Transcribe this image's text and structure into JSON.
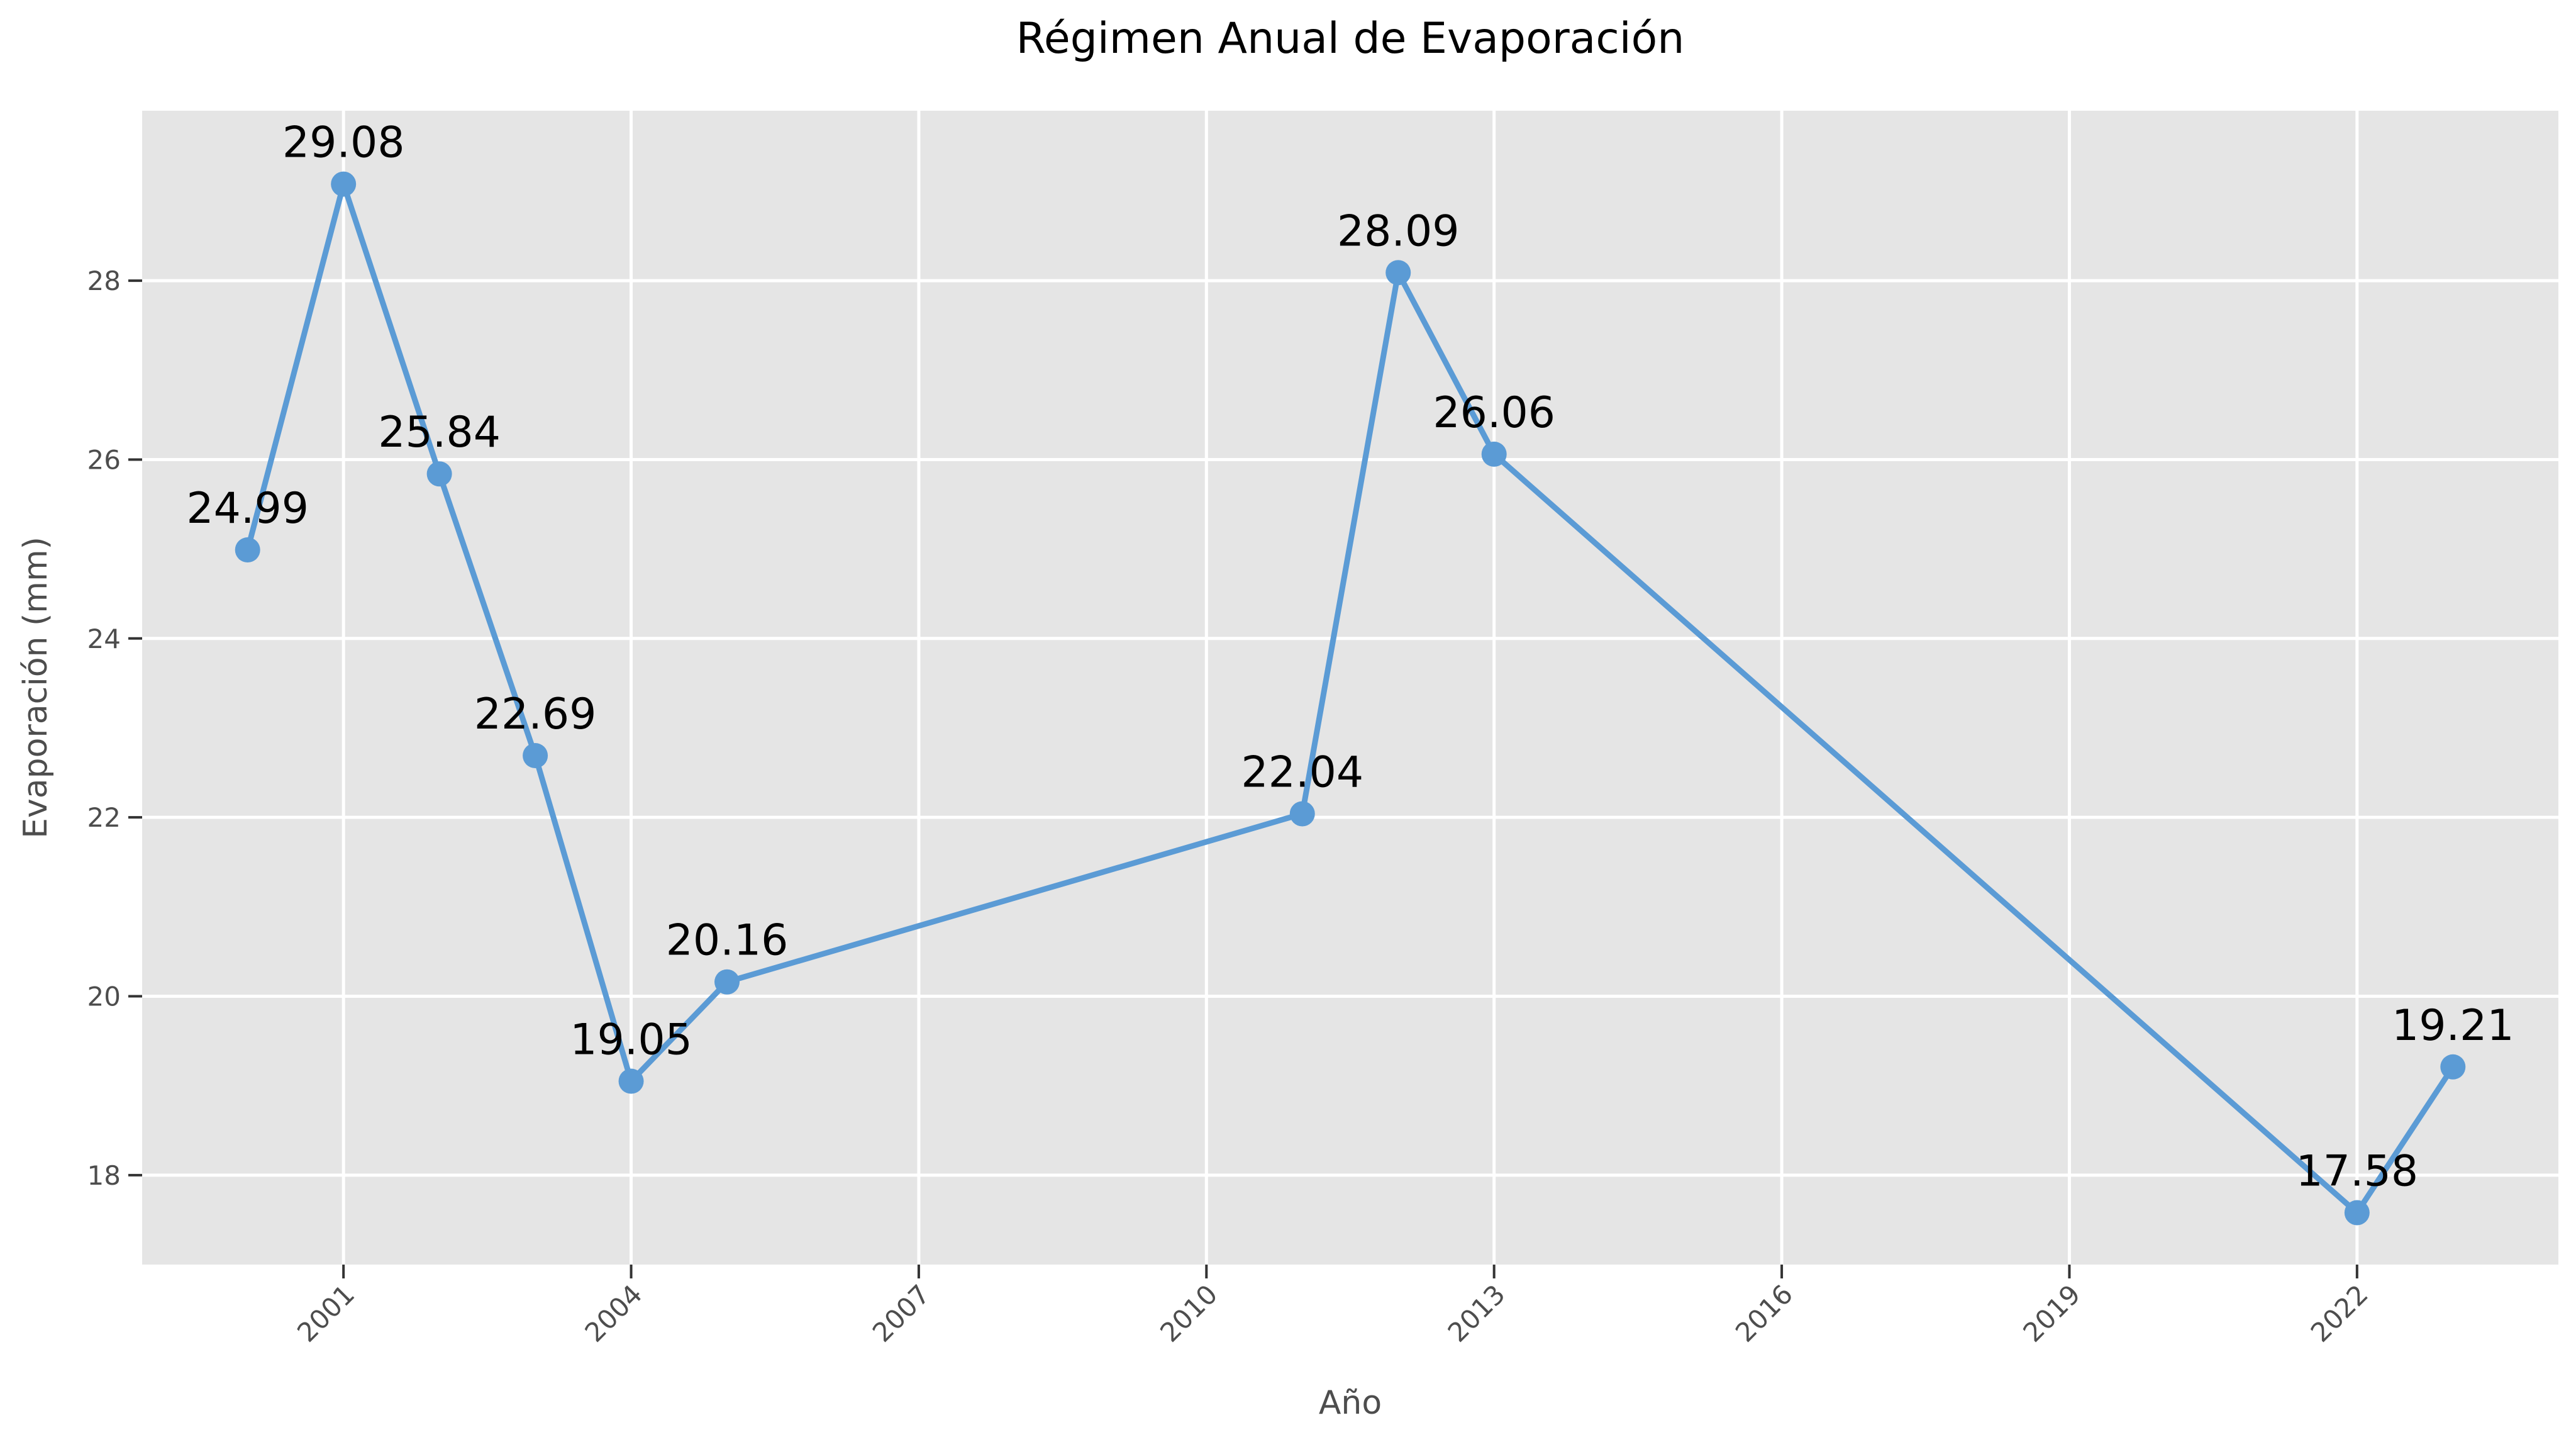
{
  "chart_data": {
    "type": "line",
    "title": "Régimen Anual de Evaporación",
    "xlabel": "Año",
    "ylabel": "Evaporación (mm)",
    "xlim": [
      1998.9,
      2024.1
    ],
    "ylim": [
      17.0,
      29.9
    ],
    "x_ticks": [
      2001,
      2004,
      2007,
      2010,
      2013,
      2016,
      2019,
      2022
    ],
    "y_ticks": [
      18,
      20,
      22,
      24,
      26,
      28
    ],
    "grid": true,
    "x": [
      2000,
      2001,
      2002,
      2003,
      2004,
      2005,
      2011,
      2012,
      2013,
      2022,
      2023
    ],
    "series": [
      {
        "values": [
          24.99,
          29.08,
          25.84,
          22.69,
          19.05,
          20.16,
          22.04,
          28.09,
          26.06,
          17.58,
          19.21
        ]
      }
    ],
    "data_labels": [
      "24.99",
      "29.08",
      "25.84",
      "22.69",
      "19.05",
      "20.16",
      "22.04",
      "28.09",
      "26.06",
      "17.58",
      "19.21"
    ],
    "colors": {
      "line": "#5b9bd5",
      "plot_background": "#e5e5e5",
      "grid": "#ffffff"
    }
  }
}
